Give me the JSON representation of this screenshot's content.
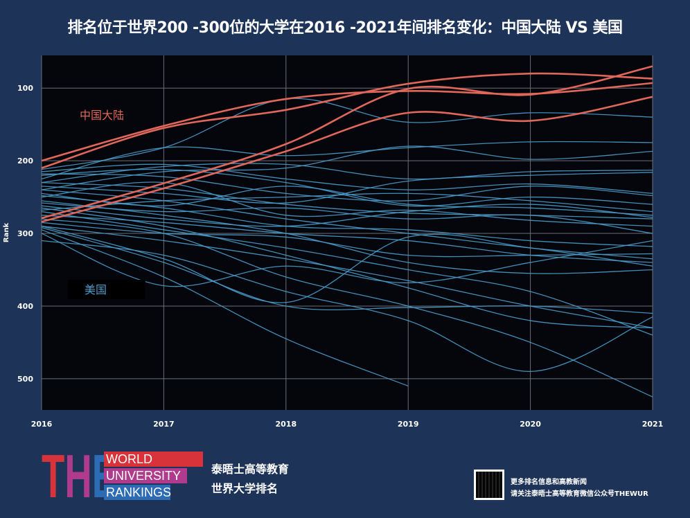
{
  "title": "排名位于世界200 -300位的大学在2016 -2021年间排名变化：中国大陆 VS 美国",
  "chart_data": {
    "type": "line",
    "title": "排名位于世界200 -300位的大学在2016 -2021年间排名变化：中国大陆 VS 美国",
    "xlabel": "",
    "ylabel": "Rank",
    "x": [
      2016,
      2017,
      2018,
      2019,
      2020,
      2021
    ],
    "x_ticks": [
      "2016",
      "2017",
      "2018",
      "2019",
      "2020",
      "2021"
    ],
    "y_ticks": [
      "100",
      "200",
      "300",
      "400",
      "500"
    ],
    "ylim": [
      543,
      55
    ],
    "y_reversed": true,
    "grid": true,
    "annotations": [
      {
        "text": "中国大陆",
        "color": "#e0675a"
      },
      {
        "text": "美国",
        "color": "#4a9ccb"
      }
    ],
    "groups": [
      {
        "label": "中国大陆",
        "color": "#e0675a",
        "series": [
          [
            200,
            152,
            115,
            104,
            108,
            93
          ],
          [
            210,
            155,
            130,
            94,
            80,
            87
          ],
          [
            279,
            231,
            177,
            101,
            109,
            70
          ],
          [
            284,
            238,
            187,
            134,
            145,
            112
          ]
        ]
      },
      {
        "label": "美国",
        "color": "#4a9ccb",
        "series": [
          [
            212,
            182,
            115,
            147,
            134,
            140
          ],
          [
            225,
            182,
            193,
            182,
            174,
            175
          ],
          [
            240,
            215,
            210,
            180,
            198,
            187
          ],
          [
            230,
            208,
            205,
            225,
            215,
            213
          ],
          [
            215,
            205,
            225,
            240,
            232,
            245
          ],
          [
            218,
            222,
            245,
            255,
            235,
            248
          ],
          [
            235,
            245,
            258,
            228,
            220,
            216
          ],
          [
            245,
            262,
            235,
            260,
            265,
            275
          ],
          [
            250,
            230,
            275,
            268,
            282,
            290
          ],
          [
            258,
            270,
            265,
            280,
            275,
            300
          ],
          [
            262,
            280,
            290,
            270,
            260,
            278
          ],
          [
            268,
            255,
            250,
            245,
            255,
            270
          ],
          [
            275,
            285,
            300,
            310,
            330,
            340
          ],
          [
            285,
            300,
            305,
            330,
            330,
            328
          ],
          [
            290,
            310,
            335,
            365,
            400,
            430
          ],
          [
            290,
            335,
            395,
            305,
            320,
            345
          ],
          [
            300,
            372,
            345,
            368,
            340,
            310
          ],
          [
            292,
            340,
            400,
            402,
            400,
            410
          ],
          [
            295,
            360,
            445,
            510,
            null,
            null
          ],
          [
            310,
            330,
            380,
            420,
            490,
            415
          ],
          [
            280,
            300,
            360,
            400,
            450,
            525
          ],
          [
            265,
            290,
            330,
            375,
            420,
            430
          ],
          [
            270,
            295,
            320,
            350,
            380,
            440
          ],
          [
            240,
            255,
            280,
            300,
            320,
            335
          ],
          [
            230,
            238,
            260,
            272,
            275,
            280
          ],
          [
            220,
            212,
            230,
            262,
            250,
            260
          ],
          [
            248,
            265,
            290,
            295,
            310,
            318
          ],
          [
            255,
            275,
            300,
            340,
            355,
            350
          ]
        ]
      }
    ]
  },
  "footer": {
    "logo": {
      "letters": "THE",
      "world": "WORLD",
      "university": "UNIVERSITY",
      "rankings": "RANKINGS"
    },
    "brand_line1": "泰晤士高等教育",
    "brand_line2": "世界大学排名",
    "follow_line1": "更多排名信息和高教新闻",
    "follow_line2": "请关注泰晤士高等教育微信公众号THEWUR"
  }
}
